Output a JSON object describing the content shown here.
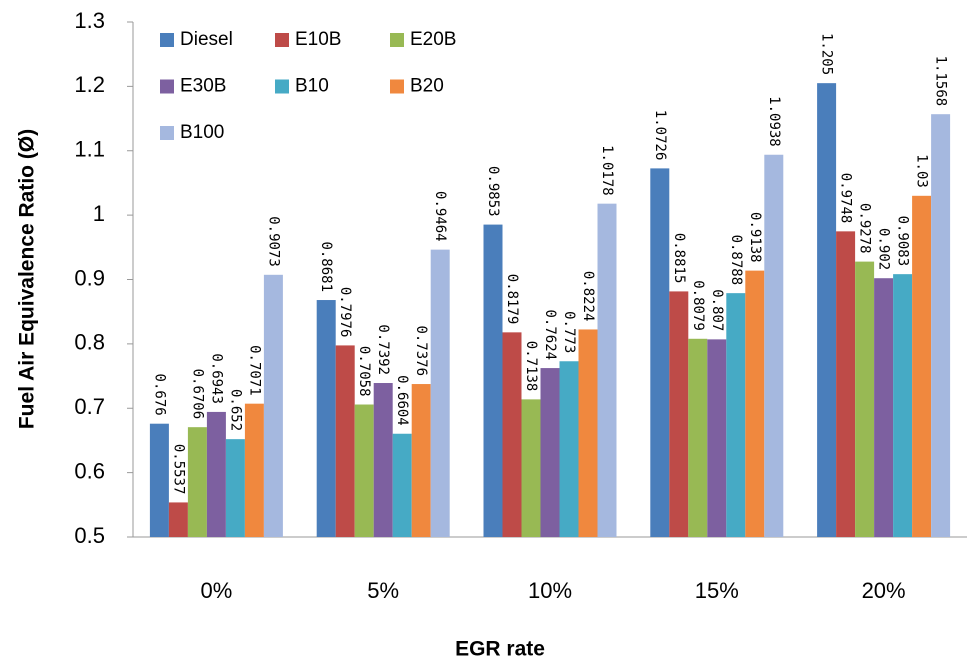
{
  "chart_data": {
    "type": "bar",
    "x_label": "EGR rate",
    "y_label": "Fuel Air Equivalence Ratio (Ø)",
    "categories": [
      "0%",
      "5%",
      "10%",
      "15%",
      "20%"
    ],
    "series": [
      {
        "name": "Diesel",
        "color": "#4a7ebb",
        "values": [
          0.676,
          0.8681,
          0.9853,
          1.0726,
          1.205
        ]
      },
      {
        "name": "E10B",
        "color": "#be4b48",
        "values": [
          0.5537,
          0.7976,
          0.8179,
          0.8815,
          0.9748
        ]
      },
      {
        "name": "E20B",
        "color": "#98b954",
        "values": [
          0.6706,
          0.7058,
          0.7138,
          0.8079,
          0.9278
        ]
      },
      {
        "name": "E30B",
        "color": "#7d60a0",
        "values": [
          0.6943,
          0.7392,
          0.7624,
          0.807,
          0.902
        ]
      },
      {
        "name": "B10",
        "color": "#46aac5",
        "values": [
          0.652,
          0.6604,
          0.773,
          0.8788,
          0.9083
        ]
      },
      {
        "name": "B20",
        "color": "#f0883e",
        "values": [
          0.7071,
          0.7376,
          0.8224,
          0.9138,
          1.03
        ]
      },
      {
        "name": "B100",
        "color": "#a5b8df",
        "values": [
          0.9073,
          0.9464,
          1.0178,
          1.0938,
          1.1568
        ]
      }
    ],
    "ylim": [
      0.5,
      1.3
    ],
    "yticks": [
      0.5,
      0.6,
      0.7,
      0.8,
      0.9,
      1,
      1.1,
      1.2,
      1.3
    ],
    "legend": "top-left",
    "grid": false
  }
}
